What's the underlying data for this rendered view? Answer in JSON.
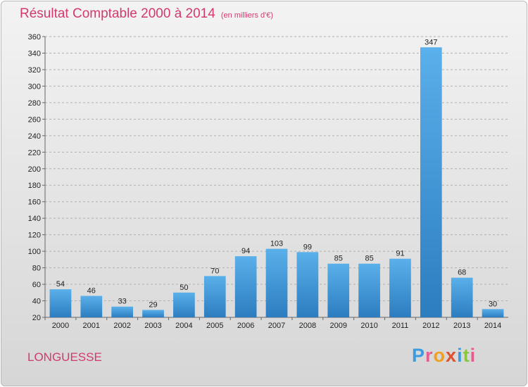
{
  "header": {
    "title": "Résultat Comptable 2000 à 2014",
    "subtitle": "(en milliers d'€)"
  },
  "footer": {
    "place_name": "LONGUESSE",
    "logo_text": "Proxiti"
  },
  "colors": {
    "title": "#d23a6c",
    "bar_top": "#5ab0ea",
    "bar_bottom": "#2c7dc0",
    "grid": "#b0b0b0",
    "logo_letters": [
      "#3a9be0",
      "#e65c8e",
      "#f0a020",
      "#e0502c",
      "#3a9be0",
      "#8cc63f",
      "#e65c8e"
    ]
  },
  "chart_data": {
    "type": "bar",
    "categories": [
      "2000",
      "2001",
      "2002",
      "2003",
      "2004",
      "2005",
      "2006",
      "2007",
      "2008",
      "2009",
      "2010",
      "2011",
      "2012",
      "2013",
      "2014"
    ],
    "values": [
      54,
      46,
      33,
      29,
      50,
      70,
      94,
      103,
      99,
      85,
      85,
      91,
      347,
      68,
      30
    ],
    "ylim": [
      20,
      360
    ],
    "yticks": [
      20,
      40,
      60,
      80,
      100,
      120,
      140,
      160,
      180,
      200,
      220,
      240,
      260,
      280,
      300,
      320,
      340,
      360
    ],
    "grid": true,
    "data_labels": true,
    "xlabel": "",
    "ylabel": ""
  }
}
